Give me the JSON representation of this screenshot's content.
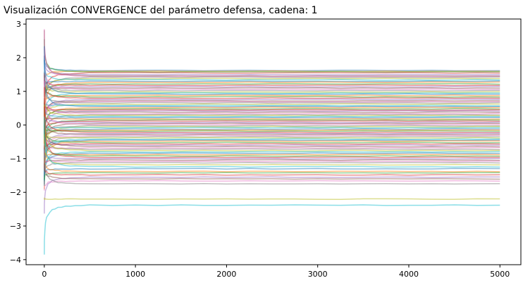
{
  "chart_data": {
    "type": "line",
    "title": "Visualización CONVERGENCE del parámetro defensa, cadena: 1",
    "xlabel": "",
    "ylabel": "",
    "xlim": [
      -200,
      5230
    ],
    "ylim": [
      -4.15,
      3.15
    ],
    "x_ticks": [
      0,
      1000,
      2000,
      3000,
      4000,
      5000
    ],
    "y_ticks": [
      -4,
      -3,
      -2,
      -1,
      0,
      1,
      2,
      3
    ],
    "x_tick_labels": [
      "0",
      "1000",
      "2000",
      "3000",
      "4000",
      "5000"
    ],
    "y_tick_labels": [
      "−4",
      "−3",
      "−2",
      "−1",
      "0",
      "1",
      "2",
      "3"
    ],
    "grid": false,
    "legend": "none",
    "n_iterations": 5000,
    "line_alpha": 0.5,
    "colors": [
      "#1f77b4",
      "#ff7f0e",
      "#2ca02c",
      "#d62728",
      "#9467bd",
      "#8c564b",
      "#e377c2",
      "#7f7f7f",
      "#bcbd22",
      "#17becf"
    ],
    "series_final_values": [
      1.62,
      1.6,
      1.58,
      1.55,
      1.5,
      1.46,
      1.44,
      1.42,
      1.38,
      1.34,
      1.3,
      1.27,
      1.22,
      1.18,
      1.14,
      1.1,
      1.06,
      1.02,
      0.98,
      0.95,
      0.92,
      0.88,
      0.84,
      0.8,
      0.76,
      0.72,
      0.69,
      0.66,
      0.62,
      0.58,
      0.55,
      0.52,
      0.48,
      0.45,
      0.42,
      0.38,
      0.34,
      0.31,
      0.28,
      0.25,
      0.22,
      0.18,
      0.15,
      0.12,
      0.08,
      0.05,
      0.02,
      -0.02,
      -0.05,
      -0.08,
      -0.12,
      -0.15,
      -0.18,
      -0.22,
      -0.25,
      -0.28,
      -0.31,
      -0.35,
      -0.38,
      -0.42,
      -0.45,
      -0.48,
      -0.52,
      -0.56,
      -0.6,
      -0.64,
      -0.68,
      -0.72,
      -0.76,
      -0.8,
      -0.84,
      -0.88,
      -0.92,
      -0.96,
      -1.0,
      -1.04,
      -1.08,
      -1.12,
      -1.18,
      -1.24,
      -1.3,
      -1.38,
      -1.42,
      -1.48,
      -1.55,
      -1.6,
      -1.66,
      -1.75,
      -2.2,
      -2.38
    ]
  }
}
